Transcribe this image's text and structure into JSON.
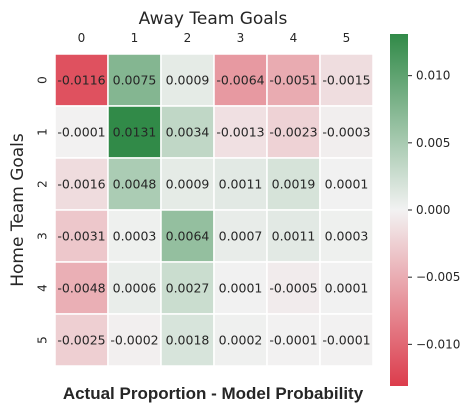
{
  "chart_data": {
    "type": "heatmap",
    "title": "Actual Proportion - Model Probability",
    "xlabel": "Away Team Goals",
    "ylabel": "Home Team Goals",
    "x_categories": [
      "0",
      "1",
      "2",
      "3",
      "4",
      "5"
    ],
    "y_categories": [
      "0",
      "1",
      "2",
      "3",
      "4",
      "5"
    ],
    "values": [
      [
        -0.0116,
        0.0075,
        0.0009,
        -0.0064,
        -0.0051,
        -0.0015
      ],
      [
        -0.0001,
        0.0131,
        0.0034,
        -0.0013,
        -0.0023,
        -0.0003
      ],
      [
        -0.0016,
        0.0048,
        0.0009,
        0.0011,
        0.0019,
        0.0001
      ],
      [
        -0.0031,
        0.0003,
        0.0064,
        0.0007,
        0.0011,
        0.0003
      ],
      [
        -0.0048,
        0.0006,
        0.0027,
        0.0001,
        -0.0005,
        0.0001
      ],
      [
        -0.0025,
        -0.0002,
        0.0018,
        0.0002,
        -0.0001,
        -0.0001
      ]
    ],
    "labels": [
      [
        "-0.0116",
        "0.0075",
        "0.0009",
        "-0.0064",
        "-0.0051",
        "-0.0015"
      ],
      [
        "-0.0001",
        "0.0131",
        "0.0034",
        "-0.0013",
        "-0.0023",
        "-0.0003"
      ],
      [
        "-0.0016",
        "0.0048",
        "0.0009",
        "0.0011",
        "0.0019",
        "0.0001"
      ],
      [
        "-0.0031",
        "0.0003",
        "0.0064",
        "0.0007",
        "0.0011",
        "0.0003"
      ],
      [
        "-0.0048",
        "0.0006",
        "0.0027",
        "0.0001",
        "-0.0005",
        "0.0001"
      ],
      [
        "-0.0025",
        "-0.0002",
        "0.0018",
        "0.0002",
        "-0.0001",
        "-0.0001"
      ]
    ],
    "color_range": [
      -0.0131,
      0.0131
    ],
    "colors": {
      "negative": "#dc3c4c",
      "center": "#f2f2f2",
      "positive": "#318a48"
    },
    "colorbar": {
      "ticks": [
        0.01,
        0.005,
        0.0,
        -0.005,
        -0.01
      ],
      "tick_labels": [
        "0.010",
        "0.005",
        "0.000",
        "−0.005",
        "−0.010"
      ]
    },
    "x_axis_position": "top",
    "grid": false,
    "legend": "colorbar-right"
  }
}
